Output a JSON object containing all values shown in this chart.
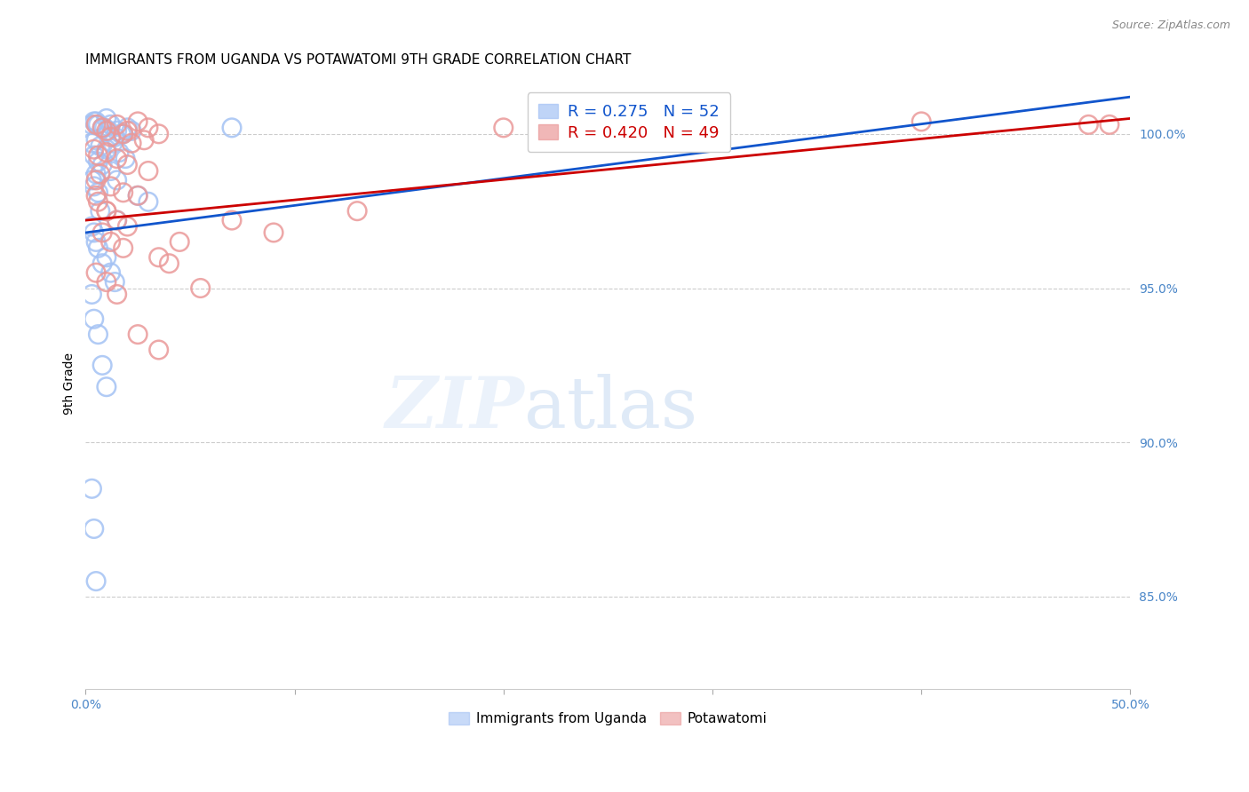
{
  "title": "IMMIGRANTS FROM UGANDA VS POTAWATOMI 9TH GRADE CORRELATION CHART",
  "source": "Source: ZipAtlas.com",
  "ylabel": "9th Grade",
  "xlim": [
    0.0,
    50.0
  ],
  "ylim": [
    82.0,
    101.8
  ],
  "yticks": [
    85.0,
    90.0,
    95.0,
    100.0
  ],
  "ytick_labels": [
    "85.0%",
    "90.0%",
    "95.0%",
    "100.0%"
  ],
  "blue_color": "#a4c2f4",
  "pink_color": "#ea9999",
  "blue_line_color": "#1155cc",
  "pink_line_color": "#cc0000",
  "axis_color": "#4a86c8",
  "grid_color": "#cccccc",
  "title_fontsize": 11,
  "tick_fontsize": 10,
  "legend_label1": "Immigrants from Uganda",
  "legend_label2": "Potawatomi",
  "blue_trend": [
    96.8,
    101.2
  ],
  "pink_trend": [
    97.2,
    100.5
  ],
  "blue_x": [
    0.3,
    0.5,
    0.8,
    1.0,
    1.2,
    1.5,
    1.8,
    2.0,
    0.4,
    0.6,
    0.9,
    1.1,
    1.4,
    1.7,
    2.2,
    0.3,
    0.5,
    0.7,
    1.0,
    1.3,
    1.6,
    1.9,
    0.4,
    0.6,
    0.8,
    1.2,
    0.3,
    0.5,
    0.4,
    0.6,
    2.5,
    3.0,
    0.7,
    1.5,
    0.3,
    0.4,
    0.5,
    0.6,
    0.8,
    1.0,
    1.2,
    1.4,
    0.3,
    0.4,
    0.6,
    0.8,
    1.0,
    0.3,
    0.4,
    0.5,
    1.5,
    7.0
  ],
  "blue_y": [
    100.3,
    100.4,
    100.2,
    100.5,
    100.3,
    100.1,
    100.0,
    100.2,
    100.4,
    100.3,
    100.2,
    100.1,
    99.9,
    100.0,
    100.1,
    99.7,
    99.8,
    99.6,
    99.5,
    99.7,
    99.4,
    99.2,
    99.3,
    99.1,
    99.0,
    98.8,
    98.5,
    98.7,
    98.3,
    98.1,
    98.0,
    97.8,
    97.5,
    97.2,
    97.0,
    96.8,
    96.5,
    96.3,
    95.8,
    96.0,
    95.5,
    95.2,
    94.8,
    94.0,
    93.5,
    92.5,
    91.8,
    88.5,
    87.2,
    85.5,
    98.5,
    100.2
  ],
  "pink_x": [
    1.5,
    2.0,
    2.5,
    3.0,
    3.5,
    0.5,
    0.8,
    1.0,
    1.2,
    1.8,
    2.2,
    2.8,
    0.4,
    0.6,
    1.0,
    1.5,
    2.0,
    3.0,
    0.5,
    0.7,
    1.2,
    1.8,
    2.5,
    0.6,
    1.0,
    1.5,
    2.0,
    0.8,
    1.2,
    1.8,
    3.5,
    4.0,
    0.5,
    1.0,
    1.5,
    2.5,
    3.5,
    4.5,
    5.5,
    7.0,
    9.0,
    13.0,
    20.0,
    30.0,
    40.0,
    48.0,
    49.0,
    0.5,
    1.0
  ],
  "pink_y": [
    100.3,
    100.1,
    100.4,
    100.2,
    100.0,
    100.3,
    100.2,
    100.1,
    99.9,
    100.0,
    99.7,
    99.8,
    99.5,
    99.3,
    99.4,
    99.2,
    99.0,
    98.8,
    98.5,
    98.7,
    98.3,
    98.1,
    98.0,
    97.8,
    97.5,
    97.2,
    97.0,
    96.8,
    96.5,
    96.3,
    96.0,
    95.8,
    95.5,
    95.2,
    94.8,
    93.5,
    93.0,
    96.5,
    95.0,
    97.2,
    96.8,
    97.5,
    100.2,
    100.3,
    100.4,
    100.3,
    100.3,
    98.0,
    97.5
  ]
}
